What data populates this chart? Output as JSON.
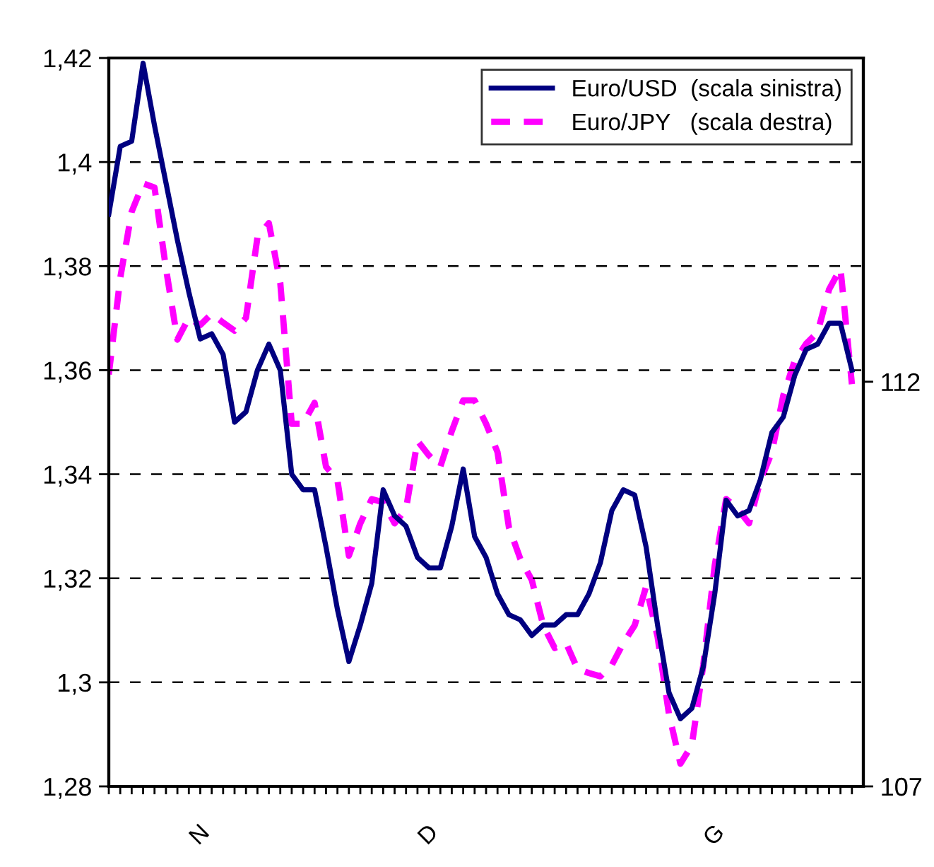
{
  "chart_data": {
    "type": "line",
    "categories": [
      null,
      null,
      null,
      null,
      null,
      null,
      null,
      null,
      "N",
      null,
      null,
      null,
      null,
      null,
      null,
      null,
      null,
      null,
      null,
      null,
      null,
      null,
      null,
      null,
      null,
      null,
      null,
      null,
      "D",
      null,
      null,
      null,
      null,
      null,
      null,
      null,
      null,
      null,
      null,
      null,
      null,
      null,
      null,
      null,
      null,
      null,
      null,
      null,
      null,
      null,
      null,
      null,
      null,
      "G",
      null,
      null,
      null,
      null,
      null,
      null,
      null,
      null,
      null,
      null,
      null,
      null
    ],
    "series": [
      {
        "name": "Euro/USD  (scala sinistra)",
        "color": "#000080",
        "line_style": "solid",
        "axis": "y",
        "values": [
          1.39,
          1.403,
          1.404,
          1.419,
          1.407,
          1.396,
          1.385,
          1.375,
          1.366,
          1.367,
          1.363,
          1.35,
          1.352,
          1.36,
          1.365,
          1.36,
          1.34,
          1.337,
          1.337,
          1.326,
          1.314,
          1.304,
          1.311,
          1.319,
          1.337,
          1.332,
          1.33,
          1.324,
          1.322,
          1.322,
          1.33,
          1.341,
          1.328,
          1.324,
          1.317,
          1.313,
          1.312,
          1.309,
          1.311,
          1.311,
          1.313,
          1.313,
          1.317,
          1.323,
          1.333,
          1.337,
          1.336,
          1.326,
          1.311,
          1.298,
          1.293,
          1.295,
          1.303,
          1.317,
          1.335,
          1.332,
          1.333,
          1.339,
          1.348,
          1.351,
          1.359,
          1.364,
          1.365,
          1.369,
          1.369,
          1.36
        ]
      },
      {
        "name": "Euro/JPY   (scala destra)",
        "color": "#ff00ff",
        "line_style": "dashed",
        "axis": "y2",
        "values": [
          112.09,
          113.28,
          114.1,
          114.45,
          114.4,
          113.4,
          112.52,
          112.79,
          112.7,
          112.84,
          112.73,
          112.63,
          112.79,
          113.78,
          113.96,
          113.22,
          111.48,
          111.48,
          111.74,
          110.95,
          110.78,
          109.85,
          110.25,
          110.55,
          110.51,
          110.25,
          110.43,
          111.27,
          111.09,
          110.95,
          111.39,
          111.77,
          111.77,
          111.48,
          111.13,
          110.2,
          109.81,
          109.55,
          108.99,
          108.71,
          108.77,
          108.45,
          108.4,
          108.36,
          108.5,
          108.77,
          108.99,
          109.47,
          108.85,
          107.89,
          107.28,
          107.51,
          108.5,
          109.73,
          110.55,
          110.43,
          110.25,
          110.78,
          111.13,
          111.83,
          112.26,
          112.47,
          112.61,
          113.14,
          113.4,
          111.97
        ]
      }
    ],
    "ylim": [
      1.28,
      1.42
    ],
    "yticks": [
      {
        "value": 1.28,
        "label": "1,28"
      },
      {
        "value": 1.3,
        "label": "1,3"
      },
      {
        "value": 1.32,
        "label": "1,32"
      },
      {
        "value": 1.34,
        "label": "1,34"
      },
      {
        "value": 1.36,
        "label": "1,36"
      },
      {
        "value": 1.38,
        "label": "1,38"
      },
      {
        "value": 1.4,
        "label": "1,4"
      },
      {
        "value": 1.42,
        "label": "1,42"
      }
    ],
    "y2lim": [
      107,
      116
    ],
    "y2ticks": [
      107,
      112
    ],
    "grid": "y",
    "legend": "top right"
  }
}
